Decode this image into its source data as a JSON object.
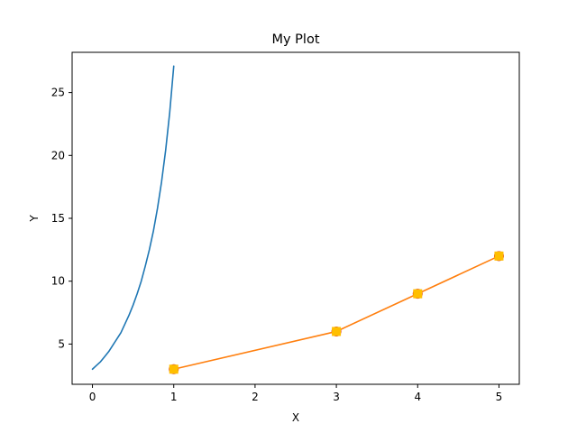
{
  "chart_data": {
    "type": "line",
    "title": "My Plot",
    "xlabel": "X",
    "ylabel": "Y",
    "xlim": [
      -0.25,
      5.25
    ],
    "ylim": [
      1.8,
      28.2
    ],
    "x_ticks": [
      0,
      1,
      2,
      3,
      4,
      5
    ],
    "y_ticks": [
      5,
      10,
      15,
      20,
      25
    ],
    "grid": false,
    "legend": false,
    "series": [
      {
        "kind": "curve",
        "color": "#1f77b4",
        "x": [
          0.0,
          0.05,
          0.1,
          0.15,
          0.2,
          0.25,
          0.3,
          0.35,
          0.4,
          0.45,
          0.5,
          0.55,
          0.6,
          0.65,
          0.7,
          0.75,
          0.8,
          0.85,
          0.9,
          0.95,
          1.0
        ],
        "y": [
          3.0,
          3.3,
          3.6,
          4.0,
          4.4,
          4.9,
          5.4,
          5.9,
          6.6,
          7.3,
          8.1,
          9.0,
          10.0,
          11.2,
          12.5,
          14.0,
          15.8,
          17.9,
          20.4,
          23.4,
          27.1
        ]
      },
      {
        "kind": "markers",
        "color": "#d62728",
        "marker": "point",
        "x": [
          1,
          3,
          4,
          5
        ],
        "y": [
          3,
          6,
          9,
          12
        ]
      },
      {
        "kind": "line-with-markers",
        "color": "#ff7f0e",
        "marker_color": "#ffbf00",
        "marker": "square",
        "x": [
          1,
          3,
          4,
          5
        ],
        "y": [
          3,
          6,
          9,
          12
        ]
      }
    ]
  }
}
